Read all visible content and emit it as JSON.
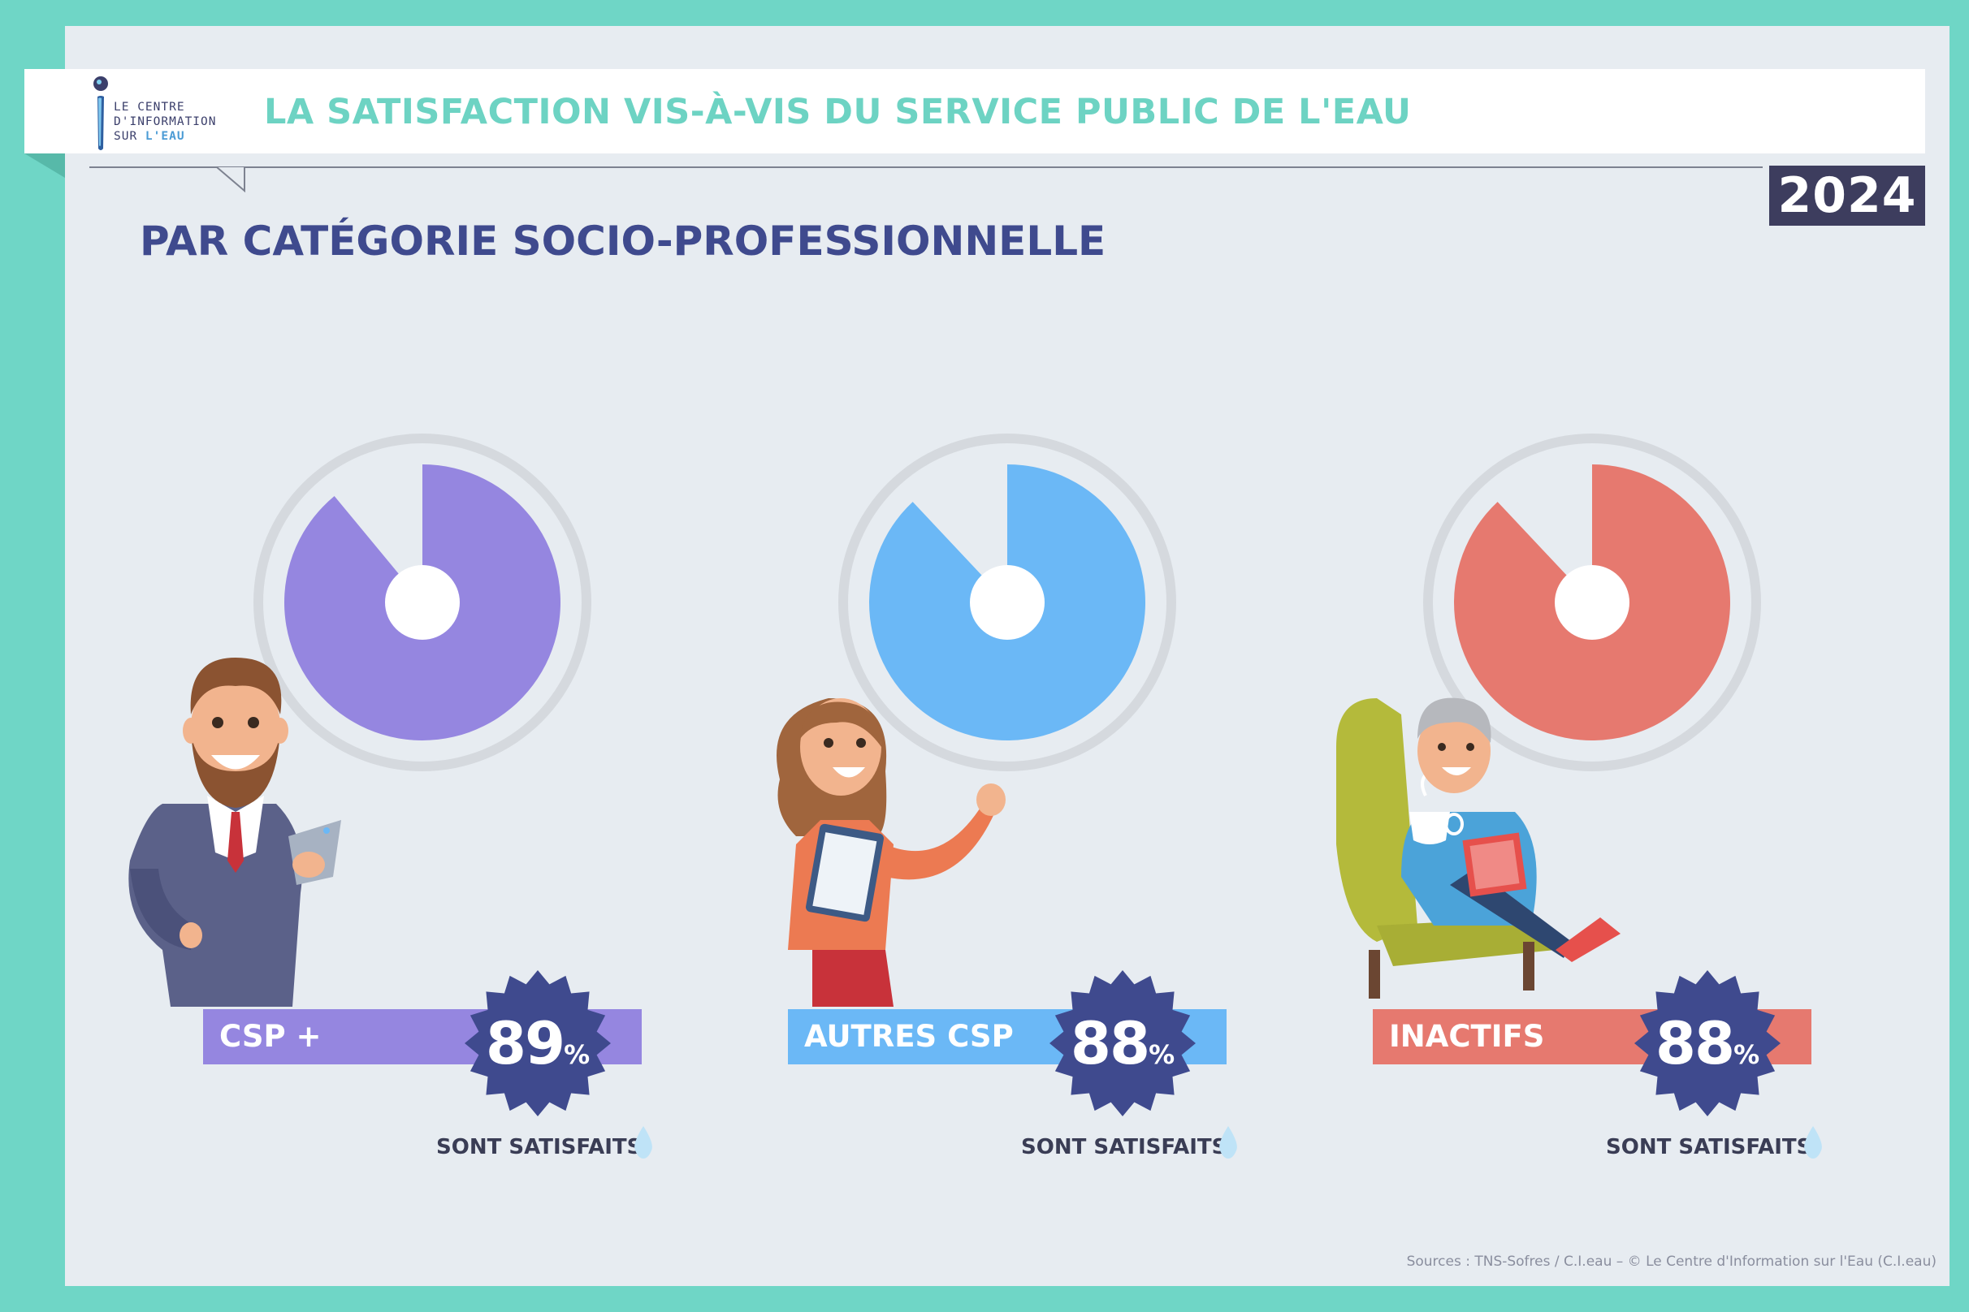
{
  "header": {
    "logo_lines": [
      "LE CENTRE",
      "D'INFORMATION",
      "SUR "
    ],
    "logo_eau": "L'EAU",
    "title": "LA SATISFACTION VIS-À-VIS DU SERVICE PUBLIC DE L'EAU",
    "year": "2024"
  },
  "subtitle": "PAR CATÉGORIE SOCIO-PROFESSIONNELLE",
  "chart_data": {
    "type": "pie",
    "title": "PAR CATÉGORIE SOCIO-PROFESSIONNELLE",
    "categories": [
      "CSP +",
      "AUTRES CSP",
      "INACTIFS"
    ],
    "values": [
      89,
      88,
      88
    ],
    "unit": "%",
    "colors": [
      "#9586e0",
      "#6bb8f6",
      "#e6796f"
    ],
    "value_caption": "SONT SATISFAITS"
  },
  "groups": [
    {
      "label": "CSP +",
      "value": "89",
      "pct": "%",
      "caption": "SONT SATISFAITS"
    },
    {
      "label": "AUTRES CSP",
      "value": "88",
      "pct": "%",
      "caption": "SONT SATISFAITS"
    },
    {
      "label": "INACTIFS",
      "value": "88",
      "pct": "%",
      "caption": "SONT SATISFAITS"
    }
  ],
  "badge_color": "#3f4a8e",
  "source": "Sources : TNS-Sofres / C.I.eau – © Le Centre d'Information sur l'Eau (C.I.eau)"
}
